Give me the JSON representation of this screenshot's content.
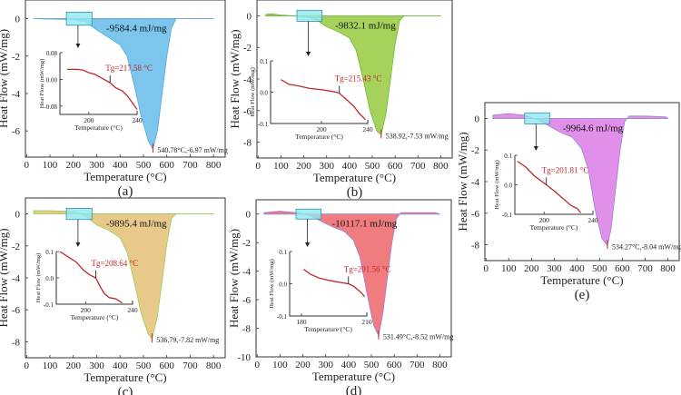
{
  "chart_data": [
    {
      "type": "area",
      "panel_label": "(a)",
      "xlabel": "Temperature (°C)",
      "ylabel": "Heat Flow (mW/mg)",
      "xlim": [
        -5,
        850
      ],
      "ylim": [
        -7.4,
        1
      ],
      "xticks": [
        0,
        100,
        200,
        300,
        400,
        500,
        600,
        700,
        800
      ],
      "yticks": [
        0,
        -2,
        -4,
        -6
      ],
      "fill": "#7cc6ee",
      "edge": "#5aa8d8",
      "curve": [
        [
          30,
          0
        ],
        [
          100,
          -0.02
        ],
        [
          200,
          -0.05
        ],
        [
          250,
          -0.15
        ],
        [
          300,
          -0.6
        ],
        [
          350,
          -1.0
        ],
        [
          400,
          -1.4
        ],
        [
          430,
          -2.0
        ],
        [
          460,
          -3.5
        ],
        [
          490,
          -5.2
        ],
        [
          520,
          -6.5
        ],
        [
          540.78,
          -6.97
        ],
        [
          560,
          -6.0
        ],
        [
          580,
          -4.0
        ],
        [
          600,
          -2.0
        ],
        [
          620,
          -0.5
        ],
        [
          640,
          0
        ],
        [
          700,
          0
        ],
        [
          800,
          0
        ]
      ],
      "enthalpy_label": "-9584.4 mJ/mg",
      "peak": {
        "x": 540.78,
        "y": -6.97,
        "label": "540.78°C,-6.97 mW/mg"
      },
      "inset": {
        "xlabel": "Temperature (°C)",
        "ylabel": "Heat Flow (mW/mg)",
        "xlim": [
          176,
          240
        ],
        "ylim": [
          -0.105,
          0.08
        ],
        "xticks": [
          200,
          240
        ],
        "yticks": [
          0.08,
          0.0,
          -0.08
        ],
        "ytick_labels": [
          "0.08",
          "0.00",
          "-0.08"
        ],
        "curve": [
          [
            182,
            0.03
          ],
          [
            190,
            0.03
          ],
          [
            195,
            0.028
          ],
          [
            200,
            0.02
          ],
          [
            205,
            0.015
          ],
          [
            210,
            0.005
          ],
          [
            217.58,
            -0.01
          ],
          [
            222,
            -0.025
          ],
          [
            228,
            -0.035
          ],
          [
            232,
            -0.05
          ],
          [
            236,
            -0.07
          ],
          [
            240,
            -0.09
          ]
        ],
        "tg": 217.58,
        "tg_y": -0.01,
        "tg_label": "Tg=217.58 °C"
      }
    },
    {
      "type": "area",
      "panel_label": "(b)",
      "xlabel": "Temperature (°C)",
      "ylabel": "Heat Flow (mW/mg)",
      "xlim": [
        -5,
        850
      ],
      "ylim": [
        -9,
        1
      ],
      "xticks": [
        0,
        100,
        200,
        300,
        400,
        500,
        600,
        700,
        800
      ],
      "yticks": [
        0,
        -2,
        -4,
        -6,
        -8
      ],
      "fill": "#a6d15a",
      "edge": "#6fba3a",
      "curve": [
        [
          35,
          0.1
        ],
        [
          60,
          0.12
        ],
        [
          100,
          0.05
        ],
        [
          200,
          -0.05
        ],
        [
          250,
          -0.2
        ],
        [
          300,
          -0.7
        ],
        [
          350,
          -1.0
        ],
        [
          400,
          -1.4
        ],
        [
          430,
          -2.2
        ],
        [
          460,
          -4.0
        ],
        [
          490,
          -6.0
        ],
        [
          520,
          -7.3
        ],
        [
          538.92,
          -7.53
        ],
        [
          560,
          -6.2
        ],
        [
          580,
          -4.0
        ],
        [
          600,
          -1.8
        ],
        [
          620,
          -0.3
        ],
        [
          640,
          0
        ],
        [
          700,
          0
        ],
        [
          800,
          0
        ]
      ],
      "enthalpy_label": "-9832.1 mJ/mg",
      "peak": {
        "x": 538.92,
        "y": -7.53,
        "label": "538.92,-7.53 mW/mg"
      },
      "inset": {
        "xlabel": "Temperature (°C)",
        "ylabel": "Heat Flow (mW/mg)",
        "xlim": [
          156,
          240
        ],
        "ylim": [
          -0.1,
          0.1
        ],
        "xticks": [
          200,
          240
        ],
        "yticks": [
          0.1,
          0.0,
          -0.1
        ],
        "ytick_labels": [
          "0.1",
          "0.0",
          "-0.1"
        ],
        "curve": [
          [
            165,
            0.04
          ],
          [
            172,
            0.025
          ],
          [
            180,
            0.02
          ],
          [
            190,
            0.012
          ],
          [
            200,
            0.008
          ],
          [
            210,
            0.002
          ],
          [
            215.43,
            -0.003
          ],
          [
            222,
            -0.025
          ],
          [
            228,
            -0.045
          ],
          [
            232,
            -0.065
          ],
          [
            238,
            -0.088
          ]
        ],
        "tg": 215.43,
        "tg_y": -0.003,
        "tg_label": "Tg=215.43 °C"
      }
    },
    {
      "type": "area",
      "panel_label": "(c)",
      "xlabel": "Temperature (°C)",
      "ylabel": "Heat Flow (mW/mg)",
      "xlim": [
        -5,
        850
      ],
      "ylim": [
        -9,
        1
      ],
      "xticks": [
        0,
        100,
        200,
        300,
        400,
        500,
        600,
        700,
        800
      ],
      "yticks": [
        0,
        -2,
        -4,
        -6,
        -8
      ],
      "fill": "#e8c98a",
      "edge": "#8fd25a",
      "curve": [
        [
          30,
          0.2
        ],
        [
          100,
          0.2
        ],
        [
          200,
          0.15
        ],
        [
          250,
          -0.1
        ],
        [
          300,
          -0.7
        ],
        [
          350,
          -1.0
        ],
        [
          400,
          -1.5
        ],
        [
          430,
          -2.4
        ],
        [
          460,
          -4.2
        ],
        [
          490,
          -6.2
        ],
        [
          520,
          -7.5
        ],
        [
          536.79,
          -7.82
        ],
        [
          560,
          -6.4
        ],
        [
          580,
          -4.2
        ],
        [
          600,
          -1.9
        ],
        [
          620,
          -0.3
        ],
        [
          640,
          0
        ],
        [
          700,
          0
        ],
        [
          800,
          0
        ]
      ],
      "enthalpy_label": "-9895.4 mJ/mg",
      "peak": {
        "x": 536.79,
        "y": -7.82,
        "label": "536.79,-7.82 mW/mg"
      },
      "inset": {
        "xlabel": "Temperature (°C)",
        "ylabel": "Heat Flow (mW/mg)",
        "xlim": [
          175,
          240
        ],
        "ylim": [
          -0.1,
          0.1
        ],
        "xticks": [
          200,
          240
        ],
        "yticks": [
          0.1,
          0.0,
          -0.1
        ],
        "ytick_labels": [
          "0.1",
          "0.0",
          "-0.1"
        ],
        "curve": [
          [
            178,
            0.1
          ],
          [
            185,
            0.08
          ],
          [
            192,
            0.06
          ],
          [
            198,
            0.03
          ],
          [
            204,
            0.01
          ],
          [
            208.64,
            0.0
          ],
          [
            212,
            -0.03
          ],
          [
            216,
            -0.06
          ],
          [
            220,
            -0.075
          ],
          [
            226,
            -0.08
          ],
          [
            231,
            -0.095
          ]
        ],
        "tg": 208.64,
        "tg_y": 0.0,
        "tg_label": "Tg=208.64 °C"
      }
    },
    {
      "type": "area",
      "panel_label": "(d)",
      "xlabel": "Temperature (°C)",
      "ylabel": "Heat Flow (mW/mg)",
      "xlim": [
        -5,
        850
      ],
      "ylim": [
        -10,
        1
      ],
      "xticks": [
        0,
        100,
        200,
        300,
        400,
        500,
        600,
        700,
        800
      ],
      "yticks": [
        0,
        -2,
        -4,
        -6,
        -8,
        -10
      ],
      "fill": "#f07c80",
      "edge": "#9a82d8",
      "curve": [
        [
          30,
          0.1
        ],
        [
          100,
          0.2
        ],
        [
          170,
          0.1
        ],
        [
          230,
          -0.1
        ],
        [
          280,
          -0.5
        ],
        [
          330,
          -0.9
        ],
        [
          380,
          -1.2
        ],
        [
          420,
          -1.8
        ],
        [
          450,
          -3.0
        ],
        [
          480,
          -5.5
        ],
        [
          510,
          -7.8
        ],
        [
          531.49,
          -8.52
        ],
        [
          550,
          -7.0
        ],
        [
          570,
          -4.5
        ],
        [
          590,
          -2.0
        ],
        [
          610,
          -0.3
        ],
        [
          630,
          0.1
        ],
        [
          700,
          0.1
        ],
        [
          780,
          0.1
        ],
        [
          800,
          0
        ]
      ],
      "enthalpy_label": "-10117.1 mJ/mg",
      "peak": {
        "x": 531.49,
        "y": -8.52,
        "label": "531.49°C,-8.52 mW/mg"
      },
      "inset": {
        "xlabel": "Temperature (°C)",
        "ylabel": "Heat Flow (mW/mg)",
        "xlim": [
          174.6,
          210
        ],
        "ylim": [
          -0.1,
          0.1
        ],
        "xticks": [
          180,
          210
        ],
        "yticks": [
          0.1,
          0.0,
          -0.1
        ],
        "ytick_labels": [
          "0.1",
          "0.0",
          "-0.1"
        ],
        "curve": [
          [
            181,
            0.045
          ],
          [
            184,
            0.03
          ],
          [
            188,
            0.018
          ],
          [
            193,
            0.01
          ],
          [
            198,
            0.004
          ],
          [
            201.56,
            0.0
          ],
          [
            204,
            -0.008
          ],
          [
            207,
            -0.025
          ],
          [
            209,
            -0.04
          ]
        ],
        "tg": 201.56,
        "tg_y": 0.0,
        "tg_label": "Tg=201.56 °C"
      }
    },
    {
      "type": "area",
      "panel_label": "(e)",
      "xlabel": "Temperature (°C)",
      "ylabel": "Heat Flow (mW/mg)",
      "xlim": [
        -5,
        850
      ],
      "ylim": [
        -9,
        1
      ],
      "xticks": [
        0,
        100,
        200,
        300,
        400,
        500,
        600,
        700,
        800
      ],
      "yticks": [
        0,
        -2,
        -4,
        -6,
        -8
      ],
      "fill": "#e190ea",
      "edge": "#9a82d8",
      "curve": [
        [
          30,
          0.2
        ],
        [
          100,
          0.3
        ],
        [
          170,
          0.2
        ],
        [
          230,
          -0.1
        ],
        [
          280,
          -0.5
        ],
        [
          330,
          -0.9
        ],
        [
          380,
          -1.2
        ],
        [
          420,
          -1.9
        ],
        [
          450,
          -3.2
        ],
        [
          480,
          -5.8
        ],
        [
          510,
          -7.6
        ],
        [
          534.27,
          -8.04
        ],
        [
          550,
          -7.0
        ],
        [
          570,
          -4.5
        ],
        [
          590,
          -2.0
        ],
        [
          610,
          -0.2
        ],
        [
          630,
          0.15
        ],
        [
          700,
          0.15
        ],
        [
          790,
          0.1
        ],
        [
          800,
          0
        ]
      ],
      "enthalpy_label": "-9964.6 mJ/mg",
      "peak": {
        "x": 534.27,
        "y": -8.04,
        "label": "534.27°C,-8.04 mW/mg"
      },
      "inset": {
        "xlabel": "Temperature (°C)",
        "ylabel": "Heat Flow (mW/mg)",
        "xlim": [
          176,
          240
        ],
        "ylim": [
          -0.1,
          0.1
        ],
        "xticks": [
          200,
          240
        ],
        "yticks": [
          0.1,
          0.0,
          -0.1
        ],
        "ytick_labels": [
          "0.1",
          "0.0",
          "-0.1"
        ],
        "curve": [
          [
            178,
            0.08
          ],
          [
            185,
            0.06
          ],
          [
            192,
            0.03
          ],
          [
            201.81,
            0.0
          ],
          [
            208,
            -0.02
          ],
          [
            215,
            -0.045
          ],
          [
            222,
            -0.07
          ],
          [
            227,
            -0.08
          ],
          [
            230,
            -0.095
          ]
        ],
        "tg": 201.81,
        "tg_y": 0.0,
        "tg_label": "Tg=201.81 °C"
      }
    }
  ]
}
